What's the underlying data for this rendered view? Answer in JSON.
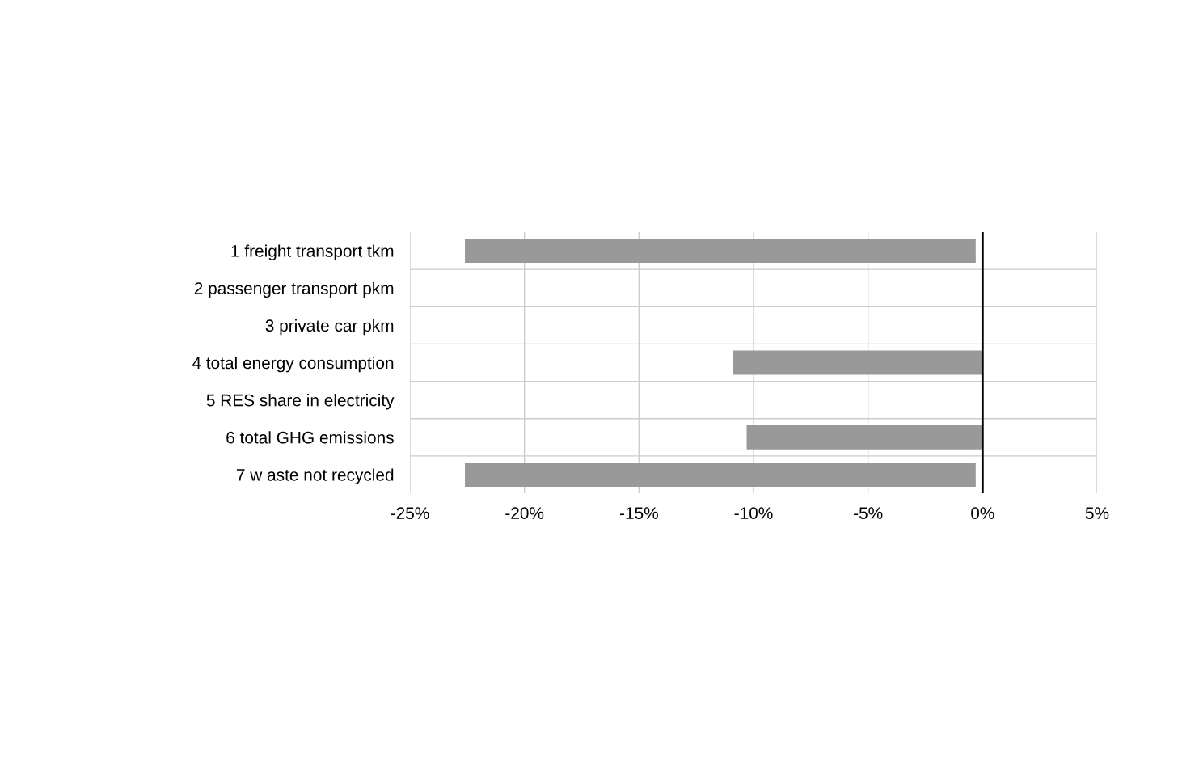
{
  "chart_data": {
    "type": "bar",
    "orientation": "horizontal",
    "categories": [
      "1 freight transport tkm",
      "2 passenger transport pkm",
      "3 private car pkm",
      "4 total energy consumption",
      "5 RES share in electricity",
      "6 total GHG emissions",
      "7 w aste not recycled"
    ],
    "values": [
      -22.3,
      null,
      null,
      -10.9,
      null,
      -10.3,
      -22.3
    ],
    "base": [
      -0.3,
      null,
      null,
      null,
      null,
      null,
      -0.3
    ],
    "color": "#999999",
    "xlim": [
      -25,
      5
    ],
    "xticks": [
      {
        "value": -25,
        "label": "-25%"
      },
      {
        "value": -20,
        "label": "-20%"
      },
      {
        "value": -15,
        "label": "-15%"
      },
      {
        "value": -10,
        "label": "-10%"
      },
      {
        "value": -5,
        "label": "-5%"
      },
      {
        "value": 0,
        "label": "0%"
      },
      {
        "value": 5,
        "label": "5%"
      }
    ],
    "grid": true
  }
}
